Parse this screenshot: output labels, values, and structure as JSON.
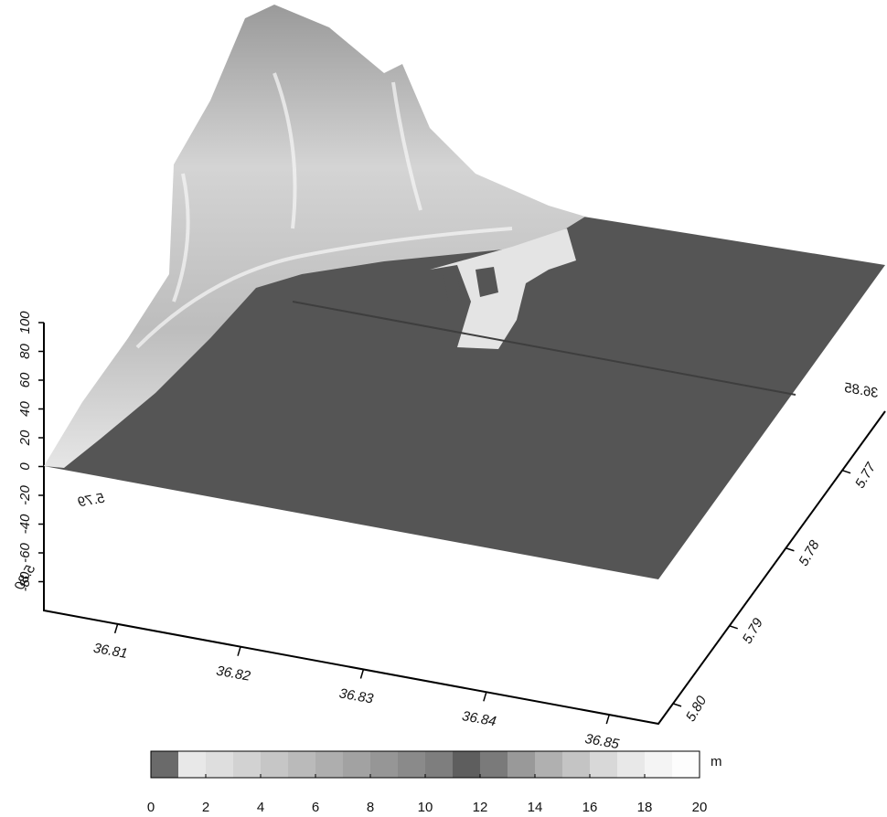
{
  "chart_data": {
    "type": "surface",
    "xlim": [
      36.804,
      36.854
    ],
    "xticks": [
      36.81,
      36.82,
      36.83,
      36.84,
      36.85
    ],
    "ylim": [
      5.8026,
      5.7624
    ],
    "yticks": [
      5.77,
      5.78,
      5.79,
      {
        "value": 5.8,
        "label": "5.80"
      }
    ],
    "zlim": [
      -100,
      100
    ],
    "zticks": [
      -80,
      -60,
      -40,
      -20,
      0,
      20,
      40,
      60,
      80,
      100
    ],
    "colorbar": {
      "lim": [
        0,
        20
      ],
      "ticks": [
        0,
        2,
        4,
        6,
        8,
        10,
        12,
        14,
        16,
        18,
        20
      ],
      "unit": "m",
      "colors": [
        "#6a6a6a",
        "#e8e8e8",
        "#dedede",
        "#d2d2d2",
        "#c6c6c6",
        "#bababa",
        "#aeaeae",
        "#a2a2a2",
        "#969696",
        "#8a8a8a",
        "#7e7e7e",
        "#5e5e5e",
        "#7a7a7a",
        "#999999",
        "#b0b0b0",
        "#c4c4c4",
        "#d8d8d8",
        "#e8e8e8",
        "#f4f4f4",
        "#fdfdfd"
      ]
    }
  }
}
